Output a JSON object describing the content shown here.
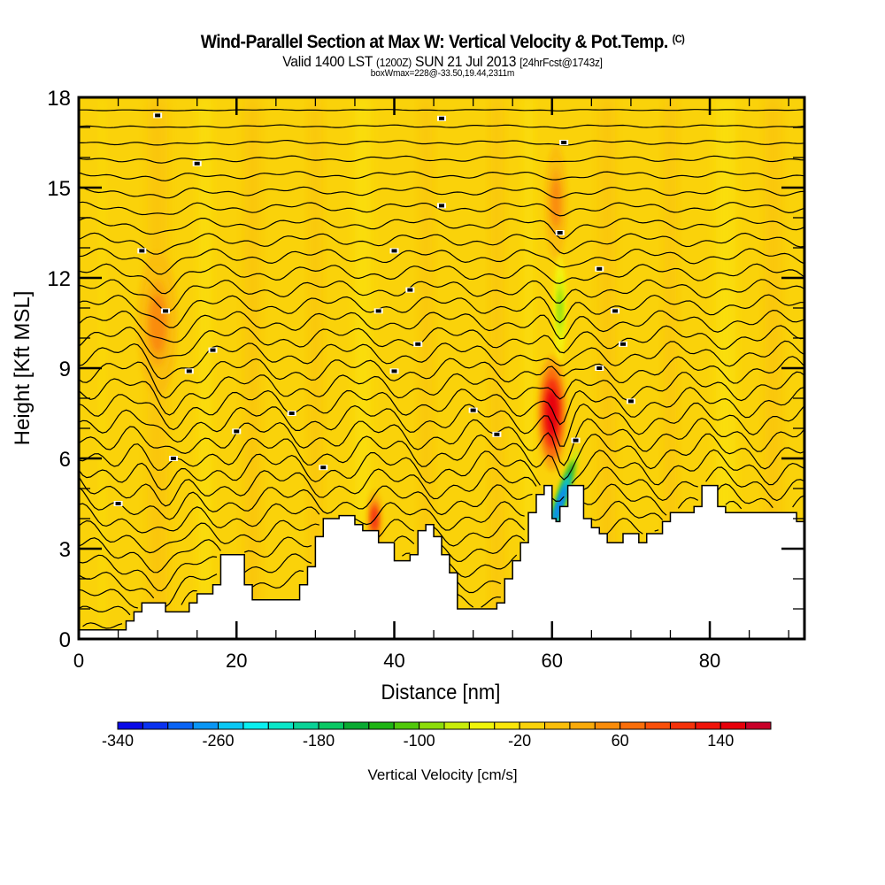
{
  "title": {
    "main": "Wind-Parallel Section at Max W: Vertical Velocity & Pot.Temp.",
    "copyright": "(C)",
    "valid_prefix": "Valid 1400 LST",
    "valid_utc": "(1200Z)",
    "valid_date": "SUN 21 Jul 2013",
    "forecast": "[24hrFcst@1743z]",
    "box_info": "boxWmax=228@-33.50,19.44,2311m"
  },
  "chart_data": {
    "type": "heatmap",
    "title": "Wind-Parallel Section at Max W: Vertical Velocity & Pot.Temp.",
    "xlabel": "Distance [nm]",
    "ylabel": "Height [Kft MSL]",
    "xlim": [
      0,
      92
    ],
    "ylim": [
      0,
      18
    ],
    "x_ticks": [
      0,
      20,
      40,
      60,
      80
    ],
    "x_tick_labels": [
      "0",
      "20",
      "40",
      "60",
      "80"
    ],
    "x_minor_step": 5,
    "y_ticks": [
      0,
      3,
      6,
      9,
      12,
      15,
      18
    ],
    "y_tick_labels": [
      "0",
      "3",
      "6",
      "9",
      "12",
      "15",
      "18"
    ],
    "y_minor_step": 1,
    "background_value_cm_s": -10,
    "colorbar": {
      "title": "Vertical Velocity [cm/s]",
      "min": -340,
      "max": 180,
      "step": 20,
      "tick_values": [
        -340,
        -260,
        -180,
        -100,
        -20,
        60,
        140
      ],
      "tick_labels": [
        "-340",
        "-260",
        "-180",
        "-100",
        "-20",
        "60",
        "140"
      ],
      "colors": [
        "#0a0ae6",
        "#0a32f0",
        "#0a64f5",
        "#0a96f5",
        "#0ac8f5",
        "#0af0f0",
        "#0ae6c8",
        "#0ad296",
        "#0ac864",
        "#0aaa32",
        "#1eb414",
        "#50c80a",
        "#8cdc0a",
        "#c8ec0a",
        "#f0f50a",
        "#fae60a",
        "#fad20a",
        "#fabe0a",
        "#faaa0a",
        "#fa8c0a",
        "#fa6e0a",
        "#fa500a",
        "#f5320a",
        "#f0140a",
        "#e6000a",
        "#c80028"
      ]
    },
    "terrain_kft": {
      "x": [
        0,
        5,
        6,
        7,
        8,
        10,
        11,
        13,
        14,
        15,
        17,
        18,
        20,
        21,
        22,
        27,
        28,
        29,
        30,
        31,
        32,
        33,
        34,
        35,
        36,
        37,
        38,
        39,
        40,
        41,
        42,
        43,
        44,
        45,
        46,
        47,
        48,
        50,
        52,
        53,
        54,
        55,
        56,
        57,
        58,
        59,
        60,
        60.5,
        61,
        62,
        63,
        64,
        65,
        66,
        67,
        68,
        69,
        70,
        71,
        72,
        73,
        74,
        75,
        76,
        77,
        78,
        79,
        80,
        81,
        82,
        83,
        84,
        86,
        88,
        90,
        91,
        92
      ],
      "y": [
        0.3,
        0.3,
        0.6,
        0.9,
        1.2,
        1.2,
        0.9,
        0.9,
        1.2,
        1.5,
        1.8,
        2.8,
        2.8,
        1.8,
        1.3,
        1.3,
        1.8,
        2.4,
        3.4,
        4.0,
        4.0,
        4.1,
        4.1,
        3.8,
        3.6,
        3.6,
        3.2,
        3.2,
        2.6,
        2.6,
        2.8,
        3.6,
        3.8,
        3.4,
        2.8,
        2.2,
        1.0,
        1.0,
        1.0,
        1.2,
        2.0,
        2.6,
        3.2,
        4.2,
        4.8,
        5.1,
        4.0,
        3.9,
        4.4,
        5.1,
        5.1,
        4.0,
        3.7,
        3.5,
        3.2,
        3.2,
        3.5,
        3.5,
        3.2,
        3.5,
        3.5,
        3.9,
        4.2,
        4.2,
        4.2,
        4.4,
        5.1,
        5.1,
        4.4,
        4.2,
        4.2,
        4.2,
        4.2,
        4.2,
        4.2,
        3.9,
        3.9
      ]
    },
    "features": [
      {
        "name": "updraft core",
        "x_nm": 60,
        "height_kft": 7.5,
        "value_cm_s": 150
      },
      {
        "name": "downdraft core",
        "x_nm": 61,
        "height_kft": 4.5,
        "value_cm_s": -300
      },
      {
        "name": "updraft",
        "x_nm": 37.5,
        "height_kft": 4.0,
        "value_cm_s": 100
      },
      {
        "name": "updraft",
        "x_nm": 10,
        "height_kft": 10.5,
        "value_cm_s": 40
      },
      {
        "name": "updraft",
        "x_nm": 60.5,
        "height_kft": 14.5,
        "value_cm_s": 50
      },
      {
        "name": "weak downdraft",
        "x_nm": 61,
        "height_kft": 11,
        "value_cm_s": -90
      }
    ],
    "isentropes": "potential temperature contours, approx. 33 lines spanning surface to 18 kft"
  }
}
